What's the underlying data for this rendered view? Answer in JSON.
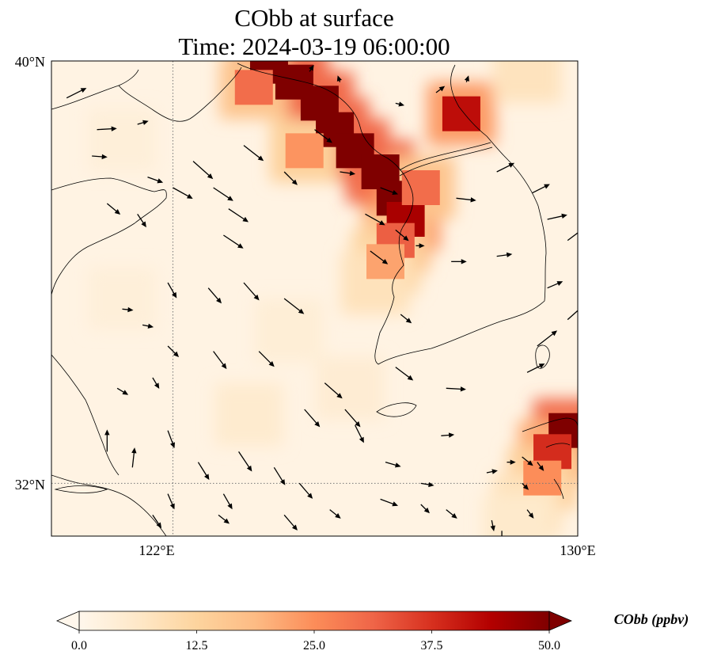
{
  "chart_data": {
    "type": "heatmap",
    "title_lines": [
      "CObb at surface",
      "Time: 2024-03-19 06:00:00"
    ],
    "variable": "CObb",
    "units": "ppbv",
    "colorbar_label": "CObb (ppbv)",
    "colormap": "OrRd",
    "colorbar_stops": [
      "#fff7ec",
      "#fee8c8",
      "#fdd49e",
      "#fdbb84",
      "#fc8d59",
      "#ef6548",
      "#d7301f",
      "#b30000",
      "#7f0000"
    ],
    "vmin": 0,
    "vmax": 50,
    "colorbar_ticks": [
      0,
      12.5,
      25,
      37.5,
      50
    ],
    "colorbar_tick_labels": [
      "0.0",
      "12.5",
      "25.0",
      "37.5",
      "50.0"
    ],
    "extend": "both",
    "lon_range": [
      119.6,
      130
    ],
    "lat_range": [
      31.0,
      40
    ],
    "x_ticks": [
      122,
      130
    ],
    "x_tick_labels": [
      "122°E",
      "130°E"
    ],
    "y_ticks": [
      40,
      32
    ],
    "y_tick_labels": [
      "40°N",
      "32°N"
    ],
    "gridlines": {
      "lon": [
        122
      ],
      "lat": [
        32
      ],
      "style": "dotted",
      "color": "#777777"
    },
    "plume_cells": [
      {
        "lon": 123.9,
        "lat": 39.9,
        "value": 52
      },
      {
        "lon": 124.4,
        "lat": 39.6,
        "value": 55
      },
      {
        "lon": 124.9,
        "lat": 39.2,
        "value": 55
      },
      {
        "lon": 125.2,
        "lat": 38.7,
        "value": 55
      },
      {
        "lon": 125.6,
        "lat": 38.3,
        "value": 55
      },
      {
        "lon": 126.1,
        "lat": 37.9,
        "value": 55
      },
      {
        "lon": 126.4,
        "lat": 37.4,
        "value": 52
      },
      {
        "lon": 126.6,
        "lat": 37.0,
        "value": 45
      },
      {
        "lon": 126.4,
        "lat": 36.6,
        "value": 32
      },
      {
        "lon": 126.2,
        "lat": 36.2,
        "value": 22
      },
      {
        "lon": 126.0,
        "lat": 35.8,
        "value": 15
      },
      {
        "lon": 123.6,
        "lat": 39.5,
        "value": 30
      },
      {
        "lon": 126.9,
        "lat": 37.6,
        "value": 30
      },
      {
        "lon": 124.6,
        "lat": 38.3,
        "value": 24
      },
      {
        "lon": 127.7,
        "lat": 39.0,
        "value": 42
      },
      {
        "lon": 129.8,
        "lat": 33.0,
        "value": 55
      },
      {
        "lon": 129.5,
        "lat": 32.6,
        "value": 38
      },
      {
        "lon": 129.3,
        "lat": 32.1,
        "value": 25
      },
      {
        "lon": 129.0,
        "lat": 31.6,
        "value": 15
      },
      {
        "lon": 128.8,
        "lat": 31.2,
        "value": 10
      },
      {
        "lon": 129.0,
        "lat": 39.8,
        "value": 14
      },
      {
        "lon": 121.0,
        "lat": 38.5,
        "value": 6
      },
      {
        "lon": 123.5,
        "lat": 33.3,
        "value": 9
      },
      {
        "lon": 125.5,
        "lat": 33.8,
        "value": 8
      },
      {
        "lon": 121.0,
        "lat": 35.5,
        "value": 6
      },
      {
        "lon": 124.3,
        "lat": 34.9,
        "value": 7
      }
    ],
    "wind_vectors": [
      {
        "lon": 119.9,
        "lat": 39.3,
        "u": 0.9,
        "v": 0.45
      },
      {
        "lon": 120.5,
        "lat": 38.7,
        "u": 0.9,
        "v": 0.05
      },
      {
        "lon": 121.3,
        "lat": 38.8,
        "u": 0.5,
        "v": 0.15
      },
      {
        "lon": 120.4,
        "lat": 38.2,
        "u": 0.7,
        "v": -0.05
      },
      {
        "lon": 121.5,
        "lat": 37.8,
        "u": 0.7,
        "v": -0.25
      },
      {
        "lon": 120.7,
        "lat": 37.3,
        "u": 0.6,
        "v": -0.5
      },
      {
        "lon": 121.3,
        "lat": 37.1,
        "u": 0.4,
        "v": -0.6
      },
      {
        "lon": 122.4,
        "lat": 38.1,
        "u": 0.9,
        "v": -0.8
      },
      {
        "lon": 122.8,
        "lat": 37.6,
        "u": 0.9,
        "v": -0.6
      },
      {
        "lon": 123.1,
        "lat": 37.2,
        "u": 0.9,
        "v": -0.6
      },
      {
        "lon": 123.4,
        "lat": 38.4,
        "u": 0.9,
        "v": -0.7
      },
      {
        "lon": 122.0,
        "lat": 37.6,
        "u": 0.9,
        "v": -0.5
      },
      {
        "lon": 123.0,
        "lat": 36.7,
        "u": 0.9,
        "v": -0.6
      },
      {
        "lon": 121.9,
        "lat": 35.8,
        "u": 0.4,
        "v": -0.7
      },
      {
        "lon": 122.7,
        "lat": 35.7,
        "u": 0.6,
        "v": -0.7
      },
      {
        "lon": 123.4,
        "lat": 35.8,
        "u": 0.7,
        "v": -0.8
      },
      {
        "lon": 124.2,
        "lat": 35.5,
        "u": 0.9,
        "v": -0.7
      },
      {
        "lon": 121.0,
        "lat": 35.3,
        "u": 0.5,
        "v": -0.05
      },
      {
        "lon": 121.4,
        "lat": 35.0,
        "u": 0.5,
        "v": -0.1
      },
      {
        "lon": 121.9,
        "lat": 34.6,
        "u": 0.5,
        "v": -0.5
      },
      {
        "lon": 122.8,
        "lat": 34.5,
        "u": 0.6,
        "v": -0.8
      },
      {
        "lon": 123.7,
        "lat": 34.5,
        "u": 0.7,
        "v": -0.7
      },
      {
        "lon": 121.6,
        "lat": 34.0,
        "u": 0.3,
        "v": -0.5
      },
      {
        "lon": 120.9,
        "lat": 33.8,
        "u": 0.5,
        "v": -0.3
      },
      {
        "lon": 124.6,
        "lat": 33.4,
        "u": 0.7,
        "v": -0.8
      },
      {
        "lon": 125.0,
        "lat": 33.9,
        "u": 0.8,
        "v": -0.7
      },
      {
        "lon": 125.4,
        "lat": 33.4,
        "u": 0.7,
        "v": -0.8
      },
      {
        "lon": 125.6,
        "lat": 33.1,
        "u": 0.4,
        "v": -0.8
      },
      {
        "lon": 121.9,
        "lat": 33.0,
        "u": 0.3,
        "v": -0.8
      },
      {
        "lon": 122.5,
        "lat": 32.4,
        "u": 0.5,
        "v": -0.8
      },
      {
        "lon": 123.3,
        "lat": 32.6,
        "u": 0.6,
        "v": -0.9
      },
      {
        "lon": 124.0,
        "lat": 32.3,
        "u": 0.5,
        "v": -0.8
      },
      {
        "lon": 124.5,
        "lat": 32.0,
        "u": 0.6,
        "v": -0.7
      },
      {
        "lon": 124.2,
        "lat": 31.4,
        "u": 0.6,
        "v": -0.7
      },
      {
        "lon": 123.0,
        "lat": 31.8,
        "u": 0.4,
        "v": -0.7
      },
      {
        "lon": 121.9,
        "lat": 31.8,
        "u": 0.3,
        "v": -0.7
      },
      {
        "lon": 120.7,
        "lat": 32.6,
        "u": 0.0,
        "v": 1.0
      },
      {
        "lon": 121.2,
        "lat": 32.3,
        "u": 0.1,
        "v": 0.9
      },
      {
        "lon": 121.6,
        "lat": 31.4,
        "u": 0.4,
        "v": -0.6
      },
      {
        "lon": 122.9,
        "lat": 31.4,
        "u": 0.5,
        "v": -0.4
      },
      {
        "lon": 125.1,
        "lat": 31.5,
        "u": 0.5,
        "v": -0.4
      },
      {
        "lon": 126.1,
        "lat": 31.7,
        "u": 0.8,
        "v": -0.3
      },
      {
        "lon": 126.2,
        "lat": 32.4,
        "u": 0.7,
        "v": -0.2
      },
      {
        "lon": 126.9,
        "lat": 32.0,
        "u": 0.6,
        "v": -0.1
      },
      {
        "lon": 126.9,
        "lat": 31.6,
        "u": 0.4,
        "v": -0.4
      },
      {
        "lon": 127.4,
        "lat": 31.5,
        "u": 0.5,
        "v": -0.4
      },
      {
        "lon": 126.6,
        "lat": 31.0,
        "u": 0.4,
        "v": -0.5
      },
      {
        "lon": 126.4,
        "lat": 34.2,
        "u": 0.8,
        "v": -0.6
      },
      {
        "lon": 126.8,
        "lat": 36.5,
        "u": 0.4,
        "v": 0.0
      },
      {
        "lon": 126.5,
        "lat": 35.2,
        "u": 0.5,
        "v": -0.4
      },
      {
        "lon": 127.6,
        "lat": 37.4,
        "u": 0.9,
        "v": -0.1
      },
      {
        "lon": 128.4,
        "lat": 36.3,
        "u": 0.7,
        "v": 0.1
      },
      {
        "lon": 127.5,
        "lat": 36.2,
        "u": 0.7,
        "v": 0.0
      },
      {
        "lon": 128.4,
        "lat": 37.9,
        "u": 0.8,
        "v": 0.4
      },
      {
        "lon": 129.1,
        "lat": 37.5,
        "u": 0.8,
        "v": 0.4
      },
      {
        "lon": 129.4,
        "lat": 37.0,
        "u": 0.9,
        "v": 0.2
      },
      {
        "lon": 129.4,
        "lat": 35.7,
        "u": 0.7,
        "v": 0.3
      },
      {
        "lon": 129.8,
        "lat": 35.1,
        "u": 0.9,
        "v": 0.8
      },
      {
        "lon": 129.2,
        "lat": 34.6,
        "u": 0.9,
        "v": 0.7
      },
      {
        "lon": 129.0,
        "lat": 34.1,
        "u": 0.8,
        "v": 0.4
      },
      {
        "lon": 127.4,
        "lat": 33.8,
        "u": 0.9,
        "v": -0.05
      },
      {
        "lon": 127.3,
        "lat": 32.9,
        "u": 0.6,
        "v": 0.05
      },
      {
        "lon": 128.2,
        "lat": 32.2,
        "u": 0.5,
        "v": 0.1
      },
      {
        "lon": 128.6,
        "lat": 32.4,
        "u": 0.4,
        "v": 0.0
      },
      {
        "lon": 128.9,
        "lat": 32.5,
        "u": 0.5,
        "v": -0.4
      },
      {
        "lon": 129.2,
        "lat": 32.4,
        "u": 0.3,
        "v": -0.4
      },
      {
        "lon": 128.9,
        "lat": 32.0,
        "u": 0.3,
        "v": -0.3
      },
      {
        "lon": 128.3,
        "lat": 31.3,
        "u": 0.1,
        "v": -0.5
      },
      {
        "lon": 129.0,
        "lat": 31.5,
        "u": 0.3,
        "v": -0.4
      },
      {
        "lon": 128.5,
        "lat": 31.1,
        "u": 0.0,
        "v": -0.5
      },
      {
        "lon": 127.2,
        "lat": 39.4,
        "u": 0.4,
        "v": 0.3
      },
      {
        "lon": 126.4,
        "lat": 39.2,
        "u": 0.4,
        "v": -0.1
      },
      {
        "lon": 127.8,
        "lat": 39.6,
        "u": 0.1,
        "v": 0.3
      },
      {
        "lon": 125.3,
        "lat": 39.6,
        "u": -0.1,
        "v": 0.3
      },
      {
        "lon": 124.7,
        "lat": 39.8,
        "u": 0.2,
        "v": 0.3
      },
      {
        "lon": 124.8,
        "lat": 38.7,
        "u": 0.8,
        "v": -0.6
      },
      {
        "lon": 125.8,
        "lat": 37.1,
        "u": 0.9,
        "v": -0.5
      },
      {
        "lon": 126.1,
        "lat": 37.6,
        "u": 0.8,
        "v": -0.3
      },
      {
        "lon": 126.4,
        "lat": 36.8,
        "u": 0.6,
        "v": -0.5
      },
      {
        "lon": 125.9,
        "lat": 36.4,
        "u": 0.8,
        "v": -0.6
      },
      {
        "lon": 125.3,
        "lat": 37.9,
        "u": 0.7,
        "v": -0.1
      },
      {
        "lon": 124.2,
        "lat": 37.9,
        "u": 0.6,
        "v": -0.6
      },
      {
        "lon": 129.8,
        "lat": 36.6,
        "u": 0.8,
        "v": 0.6
      }
    ]
  }
}
